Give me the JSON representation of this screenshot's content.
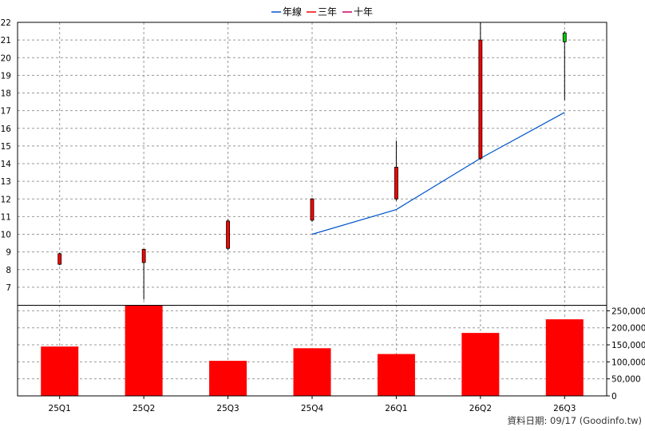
{
  "chart_data": {
    "type": "candlestick-with-volume",
    "legend": [
      {
        "label": "年線",
        "color": "#0055cc"
      },
      {
        "label": "三年",
        "color": "#ff0000"
      },
      {
        "label": "十年",
        "color": "#cc0066"
      }
    ],
    "categories": [
      "25Q1",
      "25Q2",
      "25Q3",
      "25Q4",
      "26Q1",
      "26Q2",
      "26Q3"
    ],
    "price_axis": {
      "min": 6,
      "max": 22,
      "ticks": [
        7,
        8,
        9,
        10,
        11,
        12,
        13,
        14,
        15,
        16,
        17,
        18,
        19,
        20,
        21,
        22
      ]
    },
    "volume_axis": {
      "min": 0,
      "max": 250000,
      "ticks": [
        0,
        50000,
        100000,
        150000,
        200000,
        250000
      ],
      "tick_labels": [
        "0",
        "50,000",
        "100,000",
        "150,000",
        "200,000",
        "250,000"
      ]
    },
    "candles": [
      {
        "open": 8.3,
        "high": 8.95,
        "low": 8.25,
        "close": 8.9
      },
      {
        "open": 8.4,
        "high": 9.15,
        "low": 6.3,
        "close": 9.15
      },
      {
        "open": 9.2,
        "high": 10.85,
        "low": 9.1,
        "close": 10.75
      },
      {
        "open": 10.8,
        "high": 12.05,
        "low": 10.7,
        "close": 12.0
      },
      {
        "open": 12.0,
        "high": 15.3,
        "low": 11.9,
        "close": 13.8
      },
      {
        "open": 14.3,
        "high": 22.0,
        "low": 14.2,
        "close": 21.0
      },
      {
        "open": 21.4,
        "high": 21.5,
        "low": 17.6,
        "close": 20.9
      }
    ],
    "annual_line": [
      null,
      null,
      null,
      10.0,
      11.4,
      14.3,
      16.9
    ],
    "volume": [
      145000,
      265000,
      103000,
      140000,
      123000,
      185000,
      225000
    ],
    "colors": {
      "up": "#ff0000",
      "down": "#00cc00",
      "volume": "#ff0000",
      "annual_line": "#0055cc"
    }
  },
  "footer": {
    "text": "資料日期: 09/17 (Goodinfo.tw)"
  }
}
